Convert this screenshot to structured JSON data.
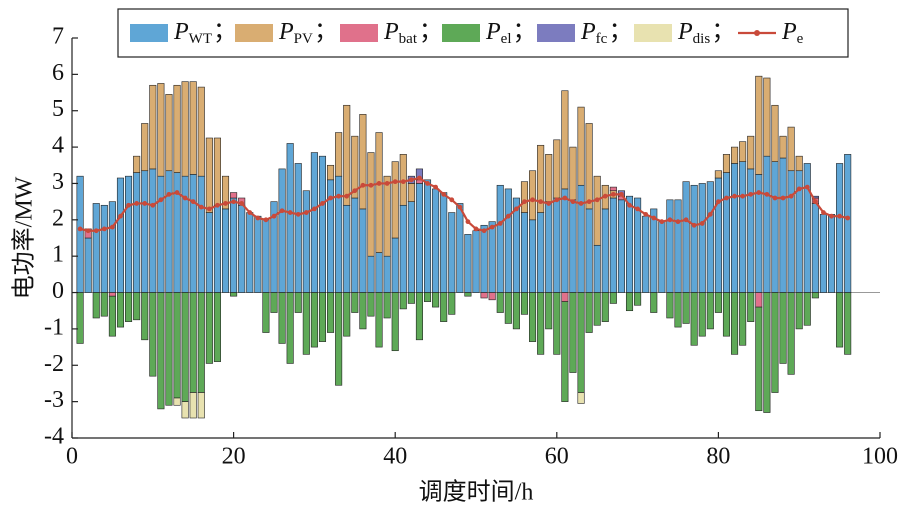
{
  "chart_data": {
    "type": "stacked_bar_line",
    "xlabel": "调度时间/h",
    "ylabel": "电功率/MW",
    "xlim": [
      0,
      100
    ],
    "xticks": [
      0,
      20,
      40,
      60,
      80,
      100
    ],
    "ylim": [
      -4,
      7
    ],
    "yticks": [
      -4,
      -3,
      -2,
      -1,
      0,
      1,
      2,
      3,
      4,
      5,
      6,
      7
    ],
    "legend_separator": "；",
    "x": [
      1,
      2,
      3,
      4,
      5,
      6,
      7,
      8,
      9,
      10,
      11,
      12,
      13,
      14,
      15,
      16,
      17,
      18,
      19,
      20,
      21,
      22,
      23,
      24,
      25,
      26,
      27,
      28,
      29,
      30,
      31,
      32,
      33,
      34,
      35,
      36,
      37,
      38,
      39,
      40,
      41,
      42,
      43,
      44,
      45,
      46,
      47,
      48,
      49,
      50,
      51,
      52,
      53,
      54,
      55,
      56,
      57,
      58,
      59,
      60,
      61,
      62,
      63,
      64,
      65,
      66,
      67,
      68,
      69,
      70,
      71,
      72,
      73,
      74,
      75,
      76,
      77,
      78,
      79,
      80,
      81,
      82,
      83,
      84,
      85,
      86,
      87,
      88,
      89,
      90,
      91,
      92,
      93,
      94,
      95,
      96
    ],
    "series": [
      {
        "name": "PWT",
        "color": "#5fa6d6",
        "kind": "bar",
        "values": [
          3.2,
          1.5,
          2.45,
          2.4,
          2.5,
          3.15,
          3.2,
          3.3,
          3.35,
          3.4,
          3.2,
          3.35,
          3.3,
          3.2,
          3.25,
          3.2,
          2.2,
          2.4,
          2.3,
          2.6,
          2.4,
          2.2,
          2.1,
          2.0,
          2.5,
          3.4,
          4.1,
          3.55,
          2.8,
          3.85,
          3.75,
          3.1,
          3.2,
          2.4,
          2.6,
          2.3,
          1.0,
          1.1,
          1.0,
          1.5,
          2.4,
          2.5,
          3.0,
          3.1,
          2.85,
          2.75,
          2.2,
          2.45,
          1.6,
          1.7,
          1.85,
          1.95,
          2.95,
          2.85,
          2.6,
          2.2,
          2.0,
          2.2,
          2.5,
          2.6,
          2.85,
          2.55,
          2.95,
          2.3,
          1.3,
          2.3,
          2.6,
          2.55,
          2.65,
          2.6,
          2.1,
          2.3,
          1.95,
          2.55,
          2.55,
          3.05,
          2.95,
          3.0,
          3.05,
          3.15,
          3.3,
          3.55,
          3.6,
          3.4,
          3.25,
          3.75,
          3.6,
          3.7,
          3.35,
          3.35,
          3.55,
          2.45,
          2.15,
          2.15,
          3.55,
          3.8
        ]
      },
      {
        "name": "PPV",
        "color": "#d9ad72",
        "kind": "bar",
        "values": [
          0,
          0,
          0,
          0,
          0,
          0,
          0,
          0.45,
          1.3,
          2.3,
          2.55,
          2.1,
          2.4,
          2.6,
          2.55,
          2.45,
          2.05,
          1.85,
          0.9,
          0,
          0,
          0,
          0,
          0,
          0,
          0,
          0,
          0,
          0,
          0,
          0,
          0.4,
          1.2,
          2.75,
          1.7,
          2.6,
          2.85,
          3.3,
          2.2,
          2.1,
          1.4,
          0.5,
          0,
          0,
          0,
          0,
          0,
          0,
          0,
          0,
          0,
          0,
          0,
          0,
          0,
          0.85,
          1.35,
          1.85,
          1.3,
          1.6,
          2.7,
          1.45,
          2.15,
          2.35,
          1.9,
          0.65,
          0.2,
          0,
          0,
          0,
          0,
          0,
          0,
          0,
          0,
          0,
          0,
          0,
          0,
          0.2,
          0.5,
          0.45,
          0.55,
          0.9,
          2.7,
          2.15,
          1.55,
          0.6,
          1.2,
          0.4,
          0,
          0,
          0,
          0,
          0,
          0
        ]
      },
      {
        "name": "Pbat",
        "color": "#e0718b",
        "kind": "bar",
        "values": [
          0,
          0.25,
          0,
          0,
          -0.1,
          0,
          0,
          0,
          0,
          0,
          0,
          0,
          0,
          0,
          0,
          0,
          0,
          0,
          0,
          0.15,
          0.2,
          0,
          0,
          0,
          0,
          0,
          0,
          0,
          0,
          0,
          0,
          0,
          0,
          0,
          0,
          0,
          0,
          0,
          0,
          0,
          0,
          0,
          0.1,
          0,
          0,
          0,
          0,
          0,
          0,
          0,
          -0.15,
          -0.2,
          0,
          0,
          0,
          0,
          0,
          0,
          0,
          0,
          -0.25,
          0,
          0,
          0,
          0,
          0,
          0.1,
          0.1,
          0,
          0,
          0,
          0,
          0,
          0,
          0,
          0,
          0,
          0,
          0,
          0,
          0,
          0,
          0,
          0,
          -0.4,
          0,
          0,
          0,
          0,
          0,
          0,
          0.15,
          0,
          0,
          0,
          0
        ]
      },
      {
        "name": "Pel",
        "color": "#5ea957",
        "kind": "bar",
        "values": [
          -1.4,
          0,
          -0.7,
          -0.65,
          -1.1,
          -0.95,
          -0.8,
          -0.75,
          -1.3,
          -2.3,
          -3.2,
          -3.1,
          -2.9,
          -3.0,
          -2.75,
          -2.75,
          -1.95,
          -1.9,
          0,
          -0.1,
          0,
          0,
          0,
          -1.1,
          -0.55,
          -1.4,
          -1.95,
          -0.55,
          -1.7,
          -1.5,
          -1.35,
          -1.1,
          -2.55,
          -1.2,
          -0.55,
          -1.0,
          -0.65,
          -1.5,
          -0.7,
          -1.6,
          -0.45,
          -0.3,
          -1.3,
          -0.25,
          -0.4,
          -0.8,
          -0.6,
          0,
          -0.1,
          0,
          0,
          0,
          -0.55,
          -0.85,
          -1.0,
          -0.6,
          -1.35,
          -1.7,
          -1.0,
          -1.7,
          -2.75,
          -2.2,
          -2.75,
          -1.1,
          -0.9,
          -0.8,
          -0.3,
          0,
          -0.5,
          -0.35,
          0,
          -0.55,
          0,
          -0.7,
          -0.95,
          -0.85,
          -1.45,
          -1.2,
          -1.0,
          -0.55,
          -1.2,
          -1.7,
          -1.45,
          -0.8,
          -2.85,
          -3.3,
          -2.75,
          -1.95,
          -2.25,
          -1.0,
          -0.9,
          -0.15,
          0,
          0,
          -1.5,
          -1.7
        ]
      },
      {
        "name": "Pfc",
        "color": "#7c7cbf",
        "kind": "bar",
        "values": [
          0,
          0,
          0,
          0,
          0,
          0,
          0,
          0,
          0,
          0,
          0,
          0,
          0,
          0,
          0,
          0,
          0,
          0,
          0,
          0,
          0,
          0,
          0,
          0,
          0,
          0,
          0,
          0,
          0,
          0,
          0,
          0,
          0,
          0,
          0,
          0,
          0,
          0,
          0,
          0,
          0,
          0.2,
          0.3,
          0,
          0,
          0,
          0,
          0,
          0,
          0,
          0,
          0,
          0,
          0,
          0,
          0,
          0,
          0,
          0,
          0,
          0,
          0,
          0,
          0,
          0,
          0,
          0,
          0.15,
          0,
          0,
          0,
          0,
          0,
          0,
          0,
          0,
          0,
          0,
          0,
          0,
          0,
          0,
          0,
          0,
          0,
          0,
          0,
          0,
          0,
          0,
          0,
          0.05,
          0,
          0,
          0,
          0
        ]
      },
      {
        "name": "Pdis",
        "color": "#e8e2b0",
        "kind": "bar",
        "values": [
          0,
          0,
          0,
          0,
          0,
          0,
          0,
          0,
          0,
          0,
          0,
          0,
          -0.2,
          -0.45,
          -0.7,
          -0.7,
          0,
          0,
          0,
          0,
          0,
          0,
          0,
          0,
          0,
          0,
          0,
          0,
          0,
          0,
          0,
          0,
          0,
          0,
          0,
          0,
          0,
          0,
          0,
          0,
          0,
          0,
          0,
          0,
          0,
          0,
          0,
          0,
          0,
          0,
          0,
          0,
          0,
          0,
          0,
          0,
          0,
          0,
          0,
          0,
          0,
          0,
          -0.3,
          0,
          0,
          0,
          0,
          0,
          0,
          0,
          0,
          0,
          0,
          0,
          0,
          0,
          0,
          0,
          0,
          0,
          0,
          0,
          0,
          0,
          0,
          0,
          0,
          0,
          0,
          0,
          0,
          0,
          0,
          0,
          0,
          0
        ]
      },
      {
        "name": "Pe",
        "color": "#c94a3a",
        "kind": "line",
        "values": [
          1.75,
          1.7,
          1.7,
          1.75,
          1.8,
          2.1,
          2.4,
          2.45,
          2.45,
          2.4,
          2.55,
          2.7,
          2.75,
          2.6,
          2.5,
          2.35,
          2.3,
          2.4,
          2.45,
          2.5,
          2.45,
          2.2,
          2.05,
          2.0,
          2.1,
          2.25,
          2.2,
          2.15,
          2.2,
          2.3,
          2.45,
          2.6,
          2.65,
          2.65,
          2.8,
          2.95,
          2.95,
          3.0,
          3.0,
          3.05,
          3.05,
          3.1,
          3.15,
          3.0,
          2.9,
          2.7,
          2.55,
          2.35,
          1.95,
          1.75,
          1.7,
          1.8,
          1.9,
          2.1,
          2.3,
          2.5,
          2.55,
          2.5,
          2.45,
          2.55,
          2.6,
          2.5,
          2.45,
          2.5,
          2.55,
          2.65,
          2.7,
          2.7,
          2.4,
          2.3,
          2.15,
          2.05,
          1.95,
          2.0,
          1.95,
          2.0,
          1.85,
          1.9,
          2.15,
          2.5,
          2.6,
          2.65,
          2.65,
          2.7,
          2.75,
          2.7,
          2.6,
          2.6,
          2.65,
          2.85,
          2.9,
          2.5,
          2.2,
          2.1,
          2.1,
          2.05
        ]
      }
    ]
  }
}
